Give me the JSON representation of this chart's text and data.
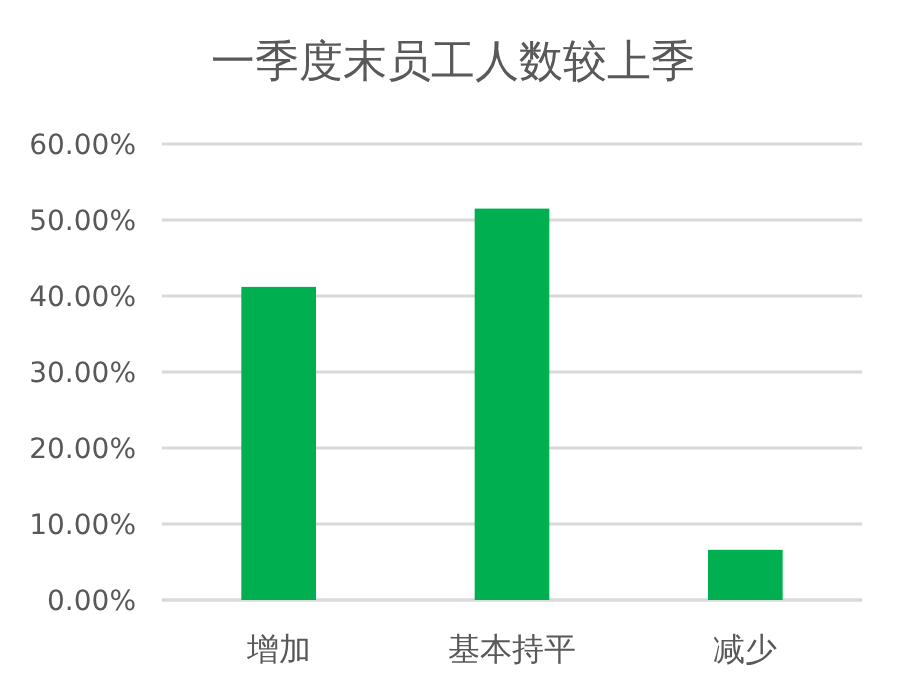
{
  "chart_data": {
    "type": "bar",
    "title": "一季度末员工人数较上季",
    "categories": [
      "增加",
      "基本持平",
      "减少"
    ],
    "values": [
      41.2,
      51.5,
      6.6
    ],
    "color": "#00b050",
    "ylim": [
      0,
      60
    ],
    "yticks": [
      {
        "value": 0,
        "label": "0.00%"
      },
      {
        "value": 10,
        "label": "10.00%"
      },
      {
        "value": 20,
        "label": "20.00%"
      },
      {
        "value": 30,
        "label": "30.00%"
      },
      {
        "value": 40,
        "label": "40.00%"
      },
      {
        "value": 50,
        "label": "50.00%"
      },
      {
        "value": 60,
        "label": "60.00%"
      }
    ],
    "grid": "y"
  }
}
